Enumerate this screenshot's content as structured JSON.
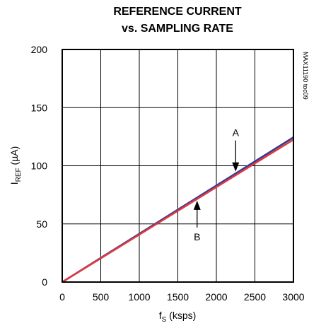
{
  "chart_data": {
    "type": "line",
    "title": "REFERENCE CURRENT",
    "subtitle": "vs. SAMPLING RATE",
    "xlabel": {
      "main": "f",
      "sub": "S",
      "suffix": " (ksps)"
    },
    "ylabel": {
      "main": "I",
      "sub": "REF",
      "suffix": " (µA)"
    },
    "watermark": "MAX11190 toc09",
    "xlim": [
      0,
      3000
    ],
    "ylim": [
      0,
      200
    ],
    "x_ticks": [
      0,
      500,
      1000,
      1500,
      2000,
      2500,
      3000
    ],
    "y_ticks": [
      0,
      50,
      100,
      150,
      200
    ],
    "grid": true,
    "series": [
      {
        "name": "A",
        "color": "#2b3a9a",
        "x": [
          0,
          3000
        ],
        "y": [
          0,
          124.5
        ]
      },
      {
        "name": "B",
        "color": "#e03a3e",
        "x": [
          0,
          3000
        ],
        "y": [
          0,
          122.5
        ]
      }
    ],
    "annotations": [
      {
        "text": "A",
        "x": 2250,
        "y": 95,
        "direction": "down"
      },
      {
        "text": "B",
        "x": 1750,
        "y": 70,
        "direction": "up"
      }
    ]
  }
}
